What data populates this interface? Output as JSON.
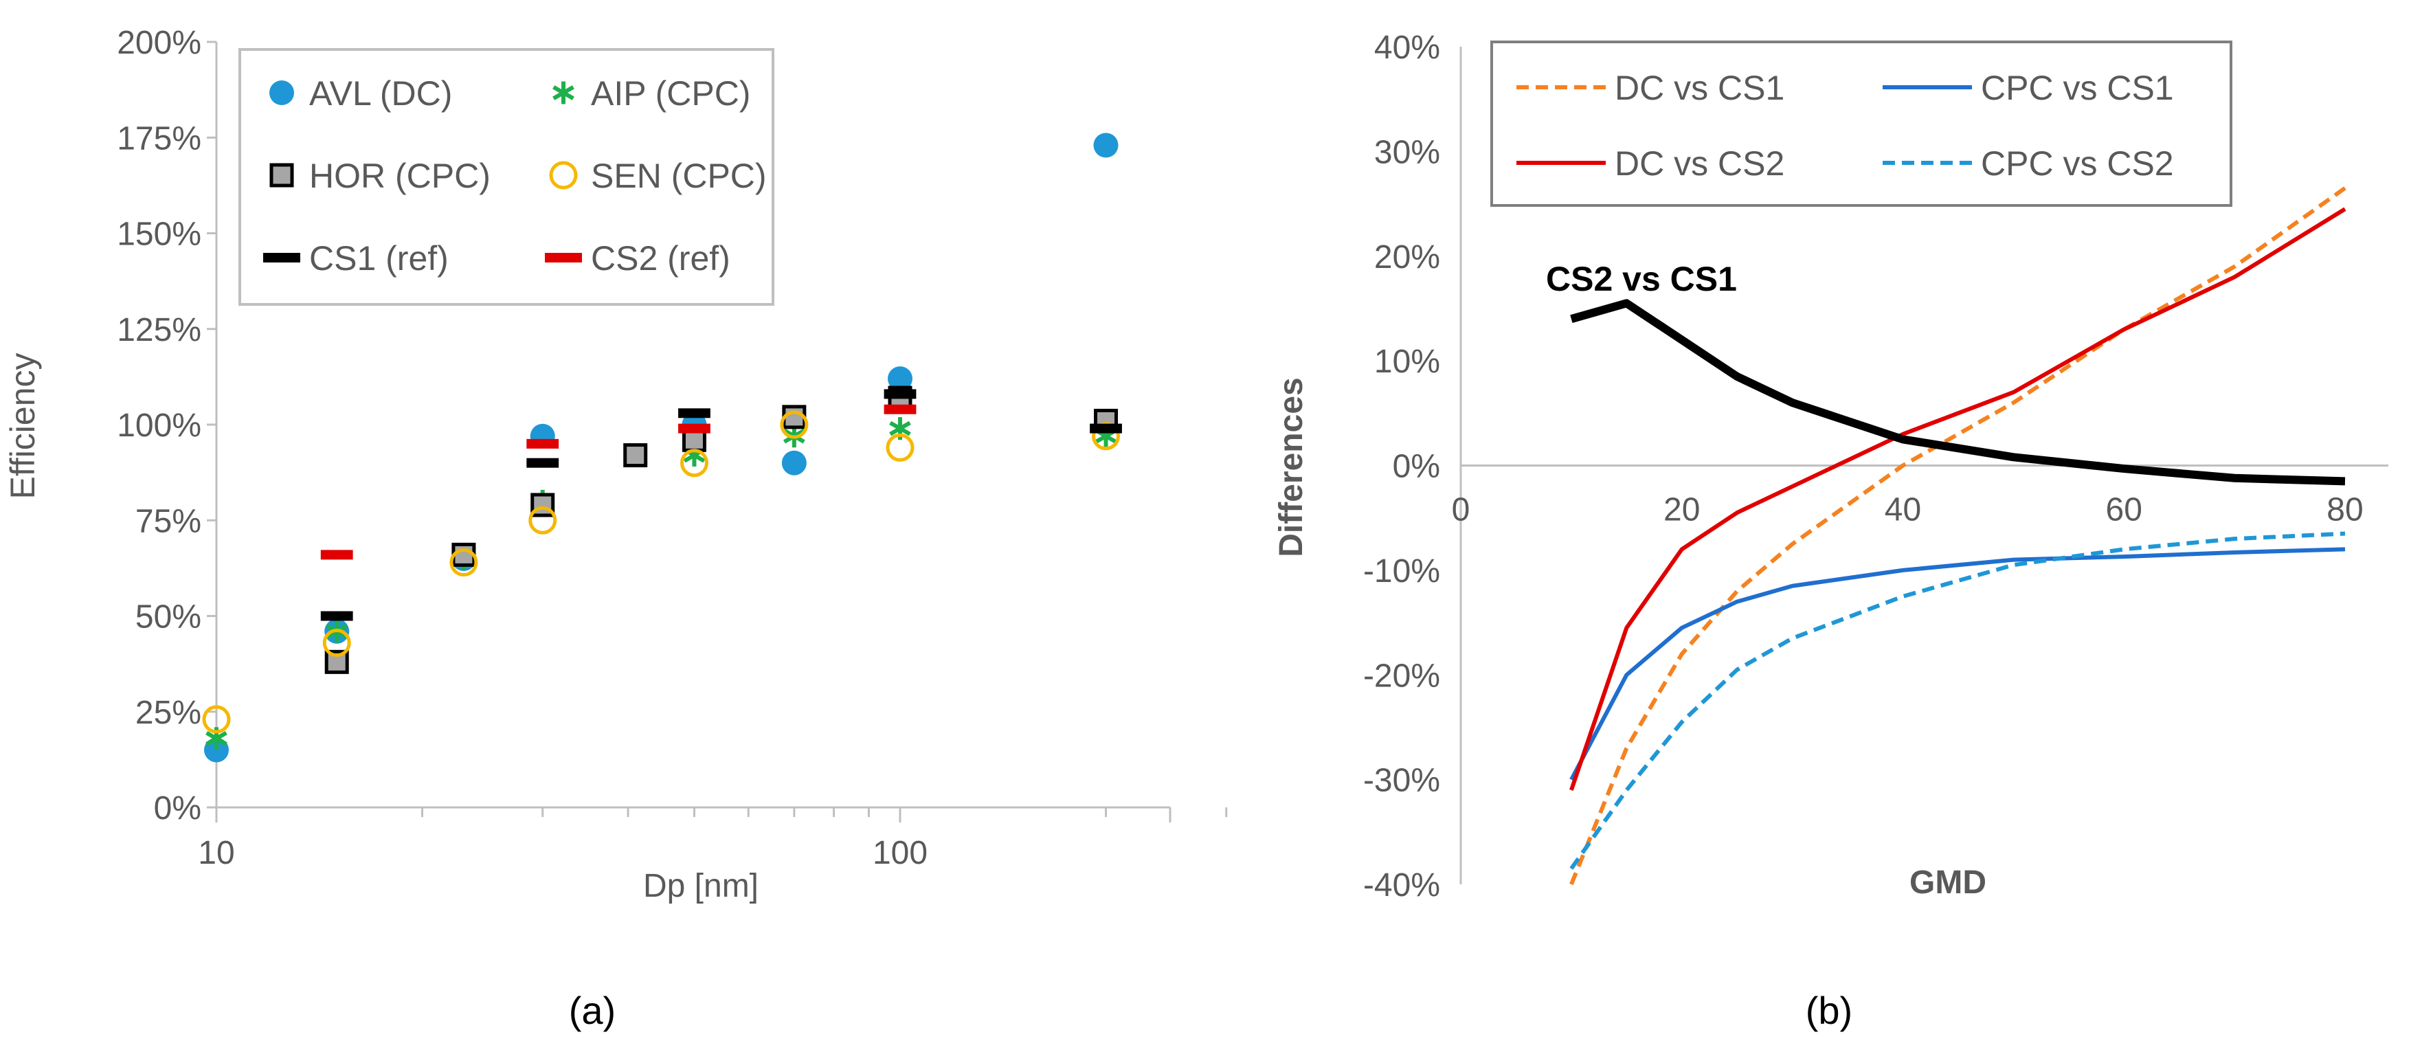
{
  "chart_data": [
    {
      "type": "scatter",
      "panel_label": "(a)",
      "xlabel": "Dp [nm]",
      "ylabel": "Efficiency",
      "xscale": "log",
      "xlim": [
        10,
        300
      ],
      "ylim": [
        0,
        200
      ],
      "xticks": [
        {
          "v": 10,
          "label": "10"
        },
        {
          "v": 100,
          "label": "100"
        }
      ],
      "yticks": [
        0,
        25,
        50,
        75,
        100,
        125,
        150,
        175,
        200
      ],
      "ytick_labels": [
        "0%",
        "25%",
        "50%",
        "75%",
        "100%",
        "125%",
        "150%",
        "175%",
        "200%"
      ],
      "legend_position": "top-left",
      "x": [
        10,
        15,
        23,
        30,
        41,
        50,
        70,
        100,
        200
      ],
      "series": [
        {
          "name": "AVL (DC)",
          "marker": "dot",
          "color": "#1f97d6",
          "values": [
            15,
            46,
            65,
            97,
            null,
            100,
            90,
            112,
            173
          ]
        },
        {
          "name": "AIP (CPC)",
          "marker": "star",
          "color": "#1db04b",
          "values": [
            18,
            46,
            65,
            80,
            null,
            92,
            97,
            99,
            97
          ]
        },
        {
          "name": "HOR (CPC)",
          "marker": "square",
          "color": "#a6a6a6",
          "values": [
            null,
            38,
            66,
            79,
            92,
            96,
            102,
            107,
            101
          ]
        },
        {
          "name": "SEN (CPC)",
          "marker": "circle",
          "color": "#f5b800",
          "values": [
            23,
            43,
            64,
            75,
            null,
            90,
            100,
            94,
            97
          ]
        },
        {
          "name": "CS1 (ref)",
          "marker": "dash",
          "color": "#000000",
          "values": [
            null,
            50,
            null,
            90,
            null,
            103,
            null,
            108,
            99
          ]
        },
        {
          "name": "CS2 (ref)",
          "marker": "dash",
          "color": "#e00000",
          "values": [
            null,
            66,
            null,
            95,
            null,
            99,
            null,
            104,
            null
          ]
        }
      ]
    },
    {
      "type": "line",
      "panel_label": "(b)",
      "xlabel": "GMD",
      "ylabel": "Differences",
      "xlim": [
        0,
        85
      ],
      "ylim": [
        -40,
        40
      ],
      "xticks": [
        0,
        20,
        40,
        60,
        80
      ],
      "yticks": [
        -40,
        -30,
        -20,
        -10,
        0,
        10,
        20,
        30,
        40
      ],
      "ytick_labels": [
        "-40%",
        "-30%",
        "-20%",
        "-10%",
        "0%",
        "10%",
        "20%",
        "30%",
        "40%"
      ],
      "legend_position": "top",
      "annotation": "CS2 vs CS1",
      "x": [
        10,
        15,
        20,
        25,
        30,
        40,
        50,
        60,
        70,
        80
      ],
      "series": [
        {
          "name": "DC vs CS1",
          "color": "#f58220",
          "dash": true,
          "values": [
            -40,
            -27,
            -18,
            -12,
            -7.5,
            0,
            6,
            13,
            19,
            26.5
          ]
        },
        {
          "name": "CPC vs CS1",
          "color": "#1f6fcf",
          "dash": false,
          "values": [
            -30,
            -20,
            -15.5,
            -13,
            -11.5,
            -10,
            -9,
            -8.7,
            -8.3,
            -8
          ]
        },
        {
          "name": "DC vs CS2",
          "color": "#e00000",
          "dash": false,
          "values": [
            -31,
            -15.5,
            -8,
            -4.5,
            -2,
            3,
            7,
            13,
            18,
            24.5
          ]
        },
        {
          "name": "CPC vs CS2",
          "color": "#1f97d6",
          "dash": true,
          "values": [
            -38.5,
            -31,
            -24.5,
            -19.5,
            -16.5,
            -12.5,
            -9.5,
            -8,
            -7,
            -6.5
          ]
        },
        {
          "name": "CS2 vs CS1",
          "color": "#000000",
          "dash": false,
          "in_legend": false,
          "values": [
            14,
            15.5,
            12,
            8.5,
            6,
            2.5,
            0.8,
            -0.3,
            -1.2,
            -1.5
          ]
        }
      ]
    }
  ]
}
